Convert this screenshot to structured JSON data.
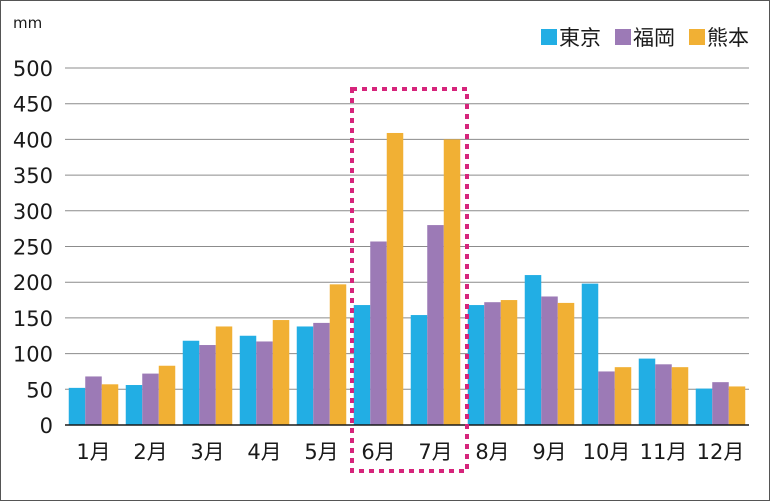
{
  "chart_data": {
    "type": "bar",
    "unit_label": "mm",
    "categories": [
      "1月",
      "2月",
      "3月",
      "4月",
      "5月",
      "6月",
      "7月",
      "8月",
      "9月",
      "10月",
      "11月",
      "12月"
    ],
    "series": [
      {
        "name": "東京",
        "color": "#22AEE4",
        "values": [
          52,
          56,
          118,
          125,
          138,
          168,
          154,
          168,
          210,
          198,
          93,
          51
        ]
      },
      {
        "name": "福岡",
        "color": "#9C7AB6",
        "values": [
          68,
          72,
          112,
          117,
          143,
          257,
          280,
          172,
          180,
          75,
          85,
          60
        ]
      },
      {
        "name": "熊本",
        "color": "#F1B034",
        "values": [
          57,
          83,
          138,
          147,
          197,
          409,
          400,
          175,
          171,
          81,
          81,
          54
        ]
      }
    ],
    "y_ticks": [
      0,
      50,
      100,
      150,
      200,
      250,
      300,
      350,
      400,
      450,
      500
    ],
    "ylim": [
      0,
      500
    ],
    "grid": true,
    "legend": "top-right",
    "highlight": {
      "categories": [
        "6月",
        "7月"
      ],
      "color": "#D6247B",
      "style": "dotted"
    }
  }
}
